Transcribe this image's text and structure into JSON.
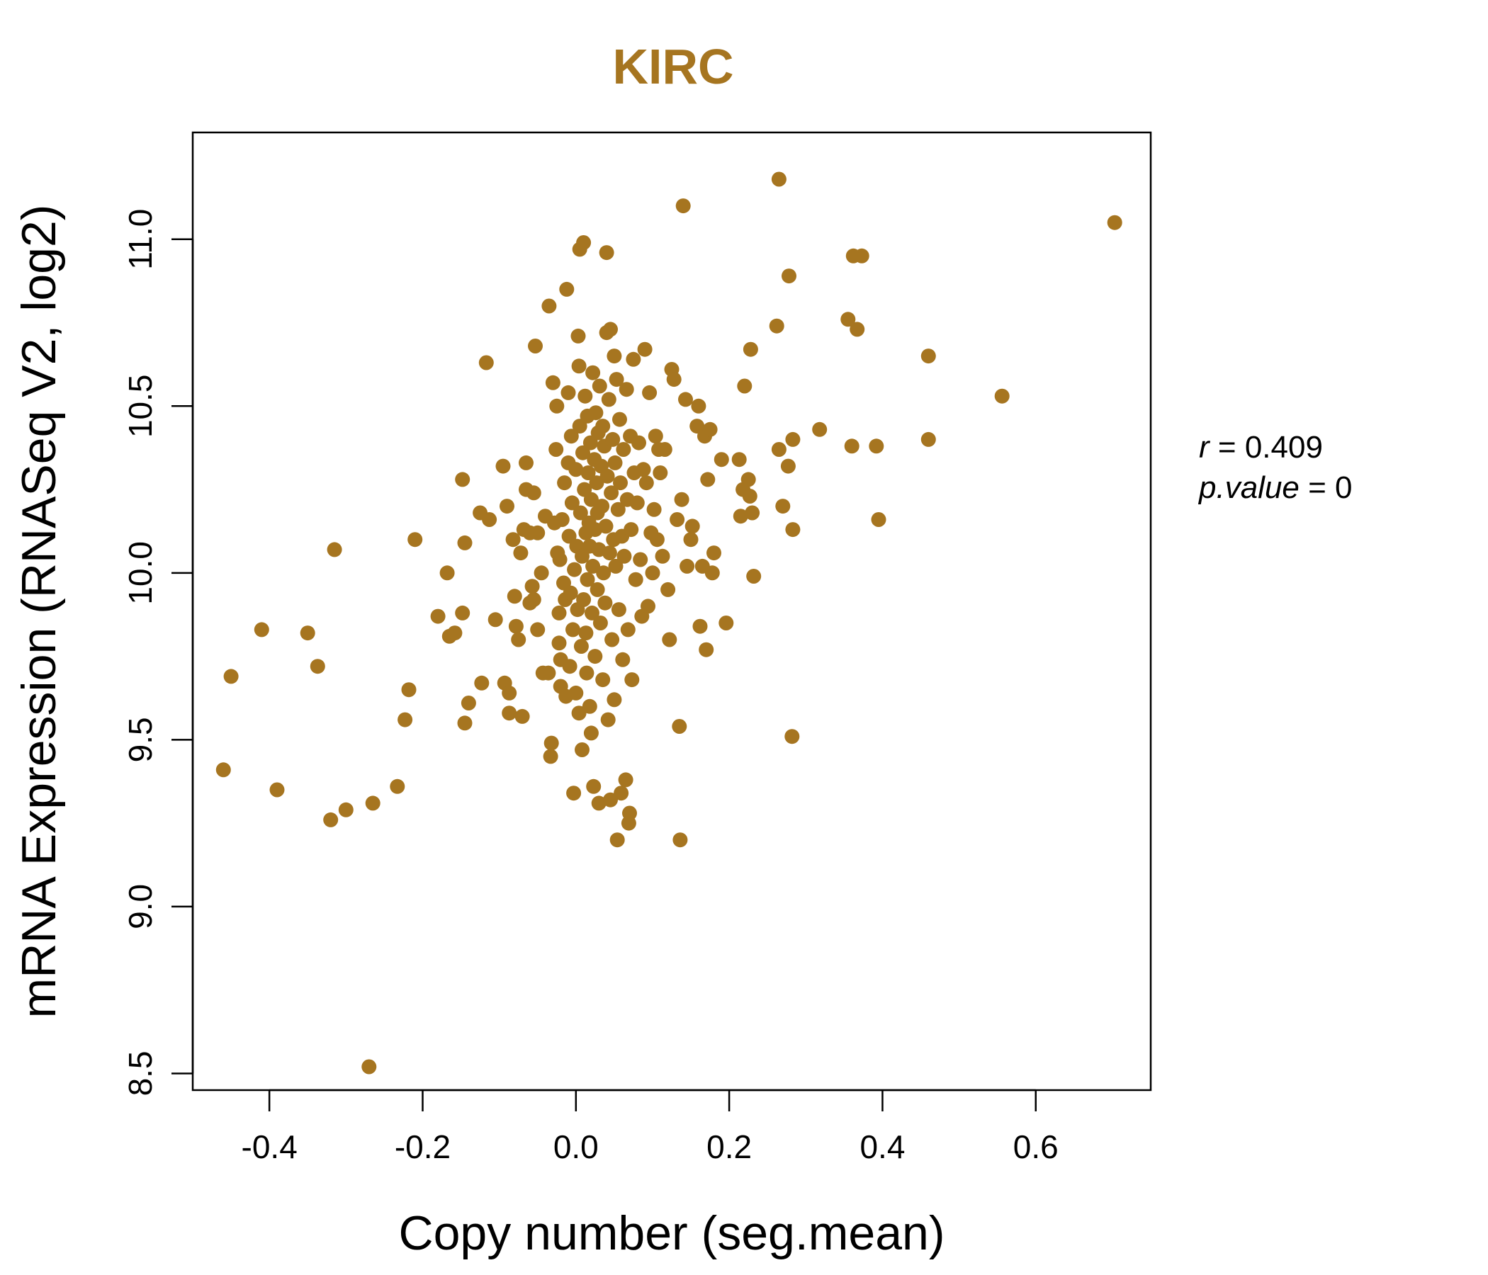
{
  "chart_data": {
    "type": "scatter",
    "title": "KIRC",
    "xlabel": "Copy number (seg.mean)",
    "ylabel": "mRNA Expression (RNASeq V2, log2)",
    "xlim": [
      -0.5,
      0.75
    ],
    "ylim": [
      8.45,
      11.32
    ],
    "xticks": [
      -0.4,
      -0.2,
      0.0,
      0.2,
      0.4,
      0.6
    ],
    "xtick_labels": [
      "-0.4",
      "-0.2",
      "0.0",
      "0.2",
      "0.4",
      "0.6"
    ],
    "yticks": [
      8.5,
      9.0,
      9.5,
      10.0,
      10.5,
      11.0
    ],
    "ytick_labels": [
      "8.5",
      "9.0",
      "9.5",
      "10.0",
      "10.5",
      "11.0"
    ],
    "point_color": "#A67520",
    "grid": false,
    "stats": {
      "r_label": "r",
      "r_value": "0.409",
      "p_label": "p.value",
      "p_value": "0"
    },
    "points": [
      [
        -0.46,
        9.41
      ],
      [
        -0.45,
        9.69
      ],
      [
        -0.41,
        9.83
      ],
      [
        -0.39,
        9.35
      ],
      [
        -0.35,
        9.82
      ],
      [
        -0.337,
        9.72
      ],
      [
        -0.32,
        9.26
      ],
      [
        -0.315,
        10.07
      ],
      [
        -0.3,
        9.29
      ],
      [
        -0.27,
        8.52
      ],
      [
        -0.265,
        9.31
      ],
      [
        -0.233,
        9.36
      ],
      [
        -0.223,
        9.56
      ],
      [
        -0.218,
        9.65
      ],
      [
        -0.21,
        10.1
      ],
      [
        -0.168,
        10.0
      ],
      [
        -0.18,
        9.87
      ],
      [
        -0.165,
        9.81
      ],
      [
        -0.158,
        9.82
      ],
      [
        -0.148,
        9.88
      ],
      [
        -0.145,
        9.55
      ],
      [
        -0.14,
        9.61
      ],
      [
        -0.125,
        10.18
      ],
      [
        -0.123,
        9.67
      ],
      [
        -0.148,
        10.28
      ],
      [
        -0.145,
        10.09
      ],
      [
        -0.113,
        10.16
      ],
      [
        -0.105,
        9.86
      ],
      [
        -0.117,
        10.63
      ],
      [
        -0.095,
        10.32
      ],
      [
        -0.093,
        9.67
      ],
      [
        -0.09,
        10.2
      ],
      [
        -0.087,
        9.64
      ],
      [
        -0.087,
        9.58
      ],
      [
        -0.082,
        10.1
      ],
      [
        -0.08,
        9.93
      ],
      [
        -0.078,
        9.84
      ],
      [
        -0.075,
        9.8
      ],
      [
        -0.072,
        10.06
      ],
      [
        -0.07,
        9.57
      ],
      [
        -0.068,
        10.13
      ],
      [
        -0.065,
        10.33
      ],
      [
        -0.065,
        10.25
      ],
      [
        -0.06,
        10.12
      ],
      [
        -0.06,
        9.91
      ],
      [
        -0.057,
        9.96
      ],
      [
        -0.055,
        9.92
      ],
      [
        -0.055,
        10.24
      ],
      [
        -0.05,
        10.12
      ],
      [
        -0.05,
        9.83
      ],
      [
        -0.053,
        10.68
      ],
      [
        -0.045,
        10.0
      ],
      [
        -0.043,
        9.7
      ],
      [
        -0.04,
        10.17
      ],
      [
        -0.036,
        9.7
      ],
      [
        -0.035,
        10.8
      ],
      [
        -0.033,
        9.45
      ],
      [
        -0.032,
        9.49
      ],
      [
        -0.03,
        10.57
      ],
      [
        -0.028,
        10.15
      ],
      [
        -0.026,
        10.37
      ],
      [
        -0.025,
        10.5
      ],
      [
        -0.024,
        10.06
      ],
      [
        -0.022,
        9.88
      ],
      [
        -0.022,
        9.79
      ],
      [
        -0.021,
        10.04
      ],
      [
        -0.02,
        9.74
      ],
      [
        -0.02,
        9.66
      ],
      [
        -0.018,
        10.16
      ],
      [
        -0.016,
        9.97
      ],
      [
        -0.015,
        10.27
      ],
      [
        -0.014,
        9.92
      ],
      [
        -0.013,
        9.63
      ],
      [
        -0.012,
        10.85
      ],
      [
        -0.01,
        10.33
      ],
      [
        -0.01,
        10.54
      ],
      [
        -0.009,
        10.11
      ],
      [
        -0.008,
        9.72
      ],
      [
        -0.007,
        9.94
      ],
      [
        -0.006,
        10.41
      ],
      [
        -0.005,
        10.21
      ],
      [
        -0.004,
        9.83
      ],
      [
        -0.003,
        9.34
      ],
      [
        -0.002,
        10.01
      ],
      [
        0.0,
        9.64
      ],
      [
        0.0,
        10.31
      ],
      [
        0.001,
        10.08
      ],
      [
        0.002,
        9.89
      ],
      [
        0.003,
        10.71
      ],
      [
        0.004,
        10.62
      ],
      [
        0.004,
        9.58
      ],
      [
        0.005,
        10.97
      ],
      [
        0.005,
        10.44
      ],
      [
        0.006,
        10.18
      ],
      [
        0.007,
        9.78
      ],
      [
        0.008,
        9.47
      ],
      [
        0.008,
        10.05
      ],
      [
        0.009,
        10.36
      ],
      [
        0.01,
        9.92
      ],
      [
        0.01,
        10.99
      ],
      [
        0.011,
        10.25
      ],
      [
        0.012,
        10.53
      ],
      [
        0.013,
        9.82
      ],
      [
        0.013,
        10.12
      ],
      [
        0.014,
        9.7
      ],
      [
        0.015,
        10.47
      ],
      [
        0.015,
        9.98
      ],
      [
        0.016,
        10.3
      ],
      [
        0.017,
        10.15
      ],
      [
        0.018,
        9.6
      ],
      [
        0.018,
        10.08
      ],
      [
        0.019,
        10.39
      ],
      [
        0.02,
        9.52
      ],
      [
        0.02,
        10.22
      ],
      [
        0.021,
        9.88
      ],
      [
        0.022,
        10.6
      ],
      [
        0.022,
        10.02
      ],
      [
        0.023,
        9.36
      ],
      [
        0.024,
        10.34
      ],
      [
        0.025,
        10.13
      ],
      [
        0.025,
        9.75
      ],
      [
        0.026,
        10.48
      ],
      [
        0.027,
        10.27
      ],
      [
        0.028,
        9.95
      ],
      [
        0.028,
        10.18
      ],
      [
        0.029,
        10.42
      ],
      [
        0.03,
        9.31
      ],
      [
        0.03,
        10.07
      ],
      [
        0.031,
        10.56
      ],
      [
        0.032,
        9.85
      ],
      [
        0.033,
        10.32
      ],
      [
        0.034,
        10.2
      ],
      [
        0.035,
        9.68
      ],
      [
        0.035,
        10.44
      ],
      [
        0.036,
        10.0
      ],
      [
        0.037,
        10.38
      ],
      [
        0.038,
        9.91
      ],
      [
        0.039,
        10.14
      ],
      [
        0.04,
        10.96
      ],
      [
        0.04,
        10.72
      ],
      [
        0.041,
        10.29
      ],
      [
        0.042,
        9.56
      ],
      [
        0.043,
        10.52
      ],
      [
        0.044,
        10.06
      ],
      [
        0.045,
        10.73
      ],
      [
        0.045,
        9.32
      ],
      [
        0.046,
        10.24
      ],
      [
        0.047,
        9.8
      ],
      [
        0.048,
        10.4
      ],
      [
        0.049,
        10.1
      ],
      [
        0.05,
        10.65
      ],
      [
        0.05,
        9.62
      ],
      [
        0.051,
        10.33
      ],
      [
        0.052,
        10.02
      ],
      [
        0.053,
        10.58
      ],
      [
        0.054,
        9.2
      ],
      [
        0.055,
        10.19
      ],
      [
        0.056,
        9.89
      ],
      [
        0.057,
        10.46
      ],
      [
        0.058,
        10.27
      ],
      [
        0.059,
        9.34
      ],
      [
        0.06,
        10.11
      ],
      [
        0.061,
        9.74
      ],
      [
        0.062,
        10.37
      ],
      [
        0.063,
        10.05
      ],
      [
        0.065,
        9.38
      ],
      [
        0.066,
        10.55
      ],
      [
        0.067,
        10.22
      ],
      [
        0.068,
        9.83
      ],
      [
        0.069,
        9.25
      ],
      [
        0.07,
        9.28
      ],
      [
        0.071,
        10.41
      ],
      [
        0.072,
        10.13
      ],
      [
        0.073,
        9.68
      ],
      [
        0.075,
        10.64
      ],
      [
        0.076,
        10.3
      ],
      [
        0.078,
        9.98
      ],
      [
        0.08,
        10.21
      ],
      [
        0.082,
        10.39
      ],
      [
        0.084,
        10.04
      ],
      [
        0.086,
        9.87
      ],
      [
        0.088,
        10.31
      ],
      [
        0.09,
        10.67
      ],
      [
        0.092,
        10.27
      ],
      [
        0.094,
        9.9
      ],
      [
        0.096,
        10.54
      ],
      [
        0.098,
        10.12
      ],
      [
        0.1,
        10.0
      ],
      [
        0.102,
        10.19
      ],
      [
        0.104,
        10.41
      ],
      [
        0.106,
        10.1
      ],
      [
        0.108,
        10.37
      ],
      [
        0.11,
        10.3
      ],
      [
        0.113,
        10.05
      ],
      [
        0.116,
        10.37
      ],
      [
        0.12,
        9.95
      ],
      [
        0.122,
        9.8
      ],
      [
        0.125,
        10.61
      ],
      [
        0.128,
        10.58
      ],
      [
        0.132,
        10.16
      ],
      [
        0.135,
        9.54
      ],
      [
        0.136,
        9.2
      ],
      [
        0.138,
        10.22
      ],
      [
        0.14,
        11.1
      ],
      [
        0.143,
        10.52
      ],
      [
        0.145,
        10.02
      ],
      [
        0.15,
        10.1
      ],
      [
        0.152,
        10.14
      ],
      [
        0.158,
        10.44
      ],
      [
        0.16,
        10.5
      ],
      [
        0.162,
        9.84
      ],
      [
        0.165,
        10.02
      ],
      [
        0.168,
        10.41
      ],
      [
        0.17,
        9.77
      ],
      [
        0.172,
        10.28
      ],
      [
        0.175,
        10.43
      ],
      [
        0.178,
        10.0
      ],
      [
        0.18,
        10.06
      ],
      [
        0.19,
        10.34
      ],
      [
        0.196,
        9.85
      ],
      [
        0.213,
        10.34
      ],
      [
        0.215,
        10.17
      ],
      [
        0.218,
        10.25
      ],
      [
        0.22,
        10.56
      ],
      [
        0.225,
        10.28
      ],
      [
        0.227,
        10.23
      ],
      [
        0.228,
        10.67
      ],
      [
        0.23,
        10.18
      ],
      [
        0.232,
        9.99
      ],
      [
        0.262,
        10.74
      ],
      [
        0.265,
        11.18
      ],
      [
        0.265,
        10.37
      ],
      [
        0.27,
        10.2
      ],
      [
        0.277,
        10.32
      ],
      [
        0.278,
        10.89
      ],
      [
        0.282,
        9.51
      ],
      [
        0.283,
        10.13
      ],
      [
        0.283,
        10.4
      ],
      [
        0.318,
        10.43
      ],
      [
        0.355,
        10.76
      ],
      [
        0.36,
        10.38
      ],
      [
        0.362,
        10.95
      ],
      [
        0.367,
        10.73
      ],
      [
        0.373,
        10.95
      ],
      [
        0.392,
        10.38
      ],
      [
        0.395,
        10.16
      ],
      [
        0.46,
        10.65
      ],
      [
        0.46,
        10.4
      ],
      [
        0.556,
        10.53
      ],
      [
        0.703,
        11.05
      ]
    ]
  }
}
